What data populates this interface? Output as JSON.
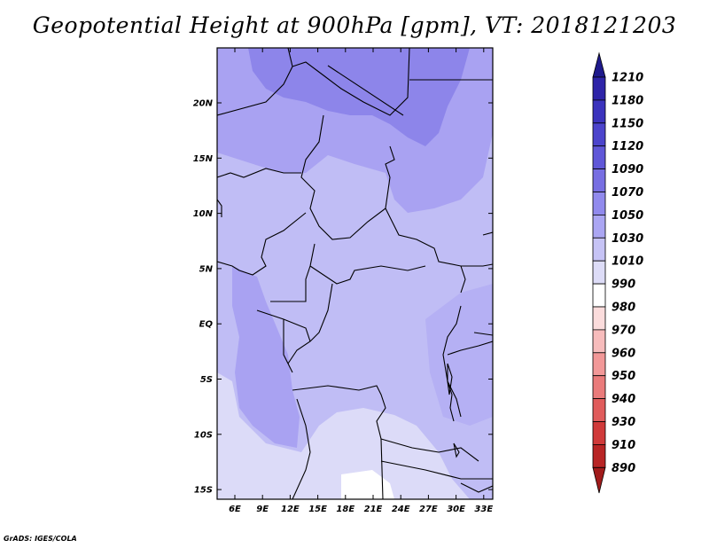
{
  "title": "Geopotential Height at 900hPa [gpm], VT: 2018121203",
  "credit": "GrADS: IGES/COLA",
  "map": {
    "lat_labels": [
      "20N",
      "15N",
      "10N",
      "5N",
      "EQ",
      "5S",
      "10S",
      "15S"
    ],
    "lon_labels": [
      "6E",
      "9E",
      "12E",
      "15E",
      "18E",
      "21E",
      "24E",
      "27E",
      "30E",
      "33E"
    ]
  },
  "colorbar": {
    "levels": [
      "1210",
      "1180",
      "1150",
      "1120",
      "1090",
      "1070",
      "1050",
      "1030",
      "1010",
      "990",
      "980",
      "970",
      "960",
      "950",
      "940",
      "930",
      "910",
      "890"
    ],
    "colors": [
      "#1f1a8c",
      "#2e24a8",
      "#3b33bd",
      "#4c44cc",
      "#6057d8",
      "#776ee2",
      "#918aed",
      "#aba6f3",
      "#c6c3f5",
      "#dddcf7",
      "#ffffff",
      "#fbdcdc",
      "#f7bcbc",
      "#f29898",
      "#ea7b7b",
      "#e05c5c",
      "#d03a3a",
      "#b82525",
      "#a11b1b"
    ]
  }
}
